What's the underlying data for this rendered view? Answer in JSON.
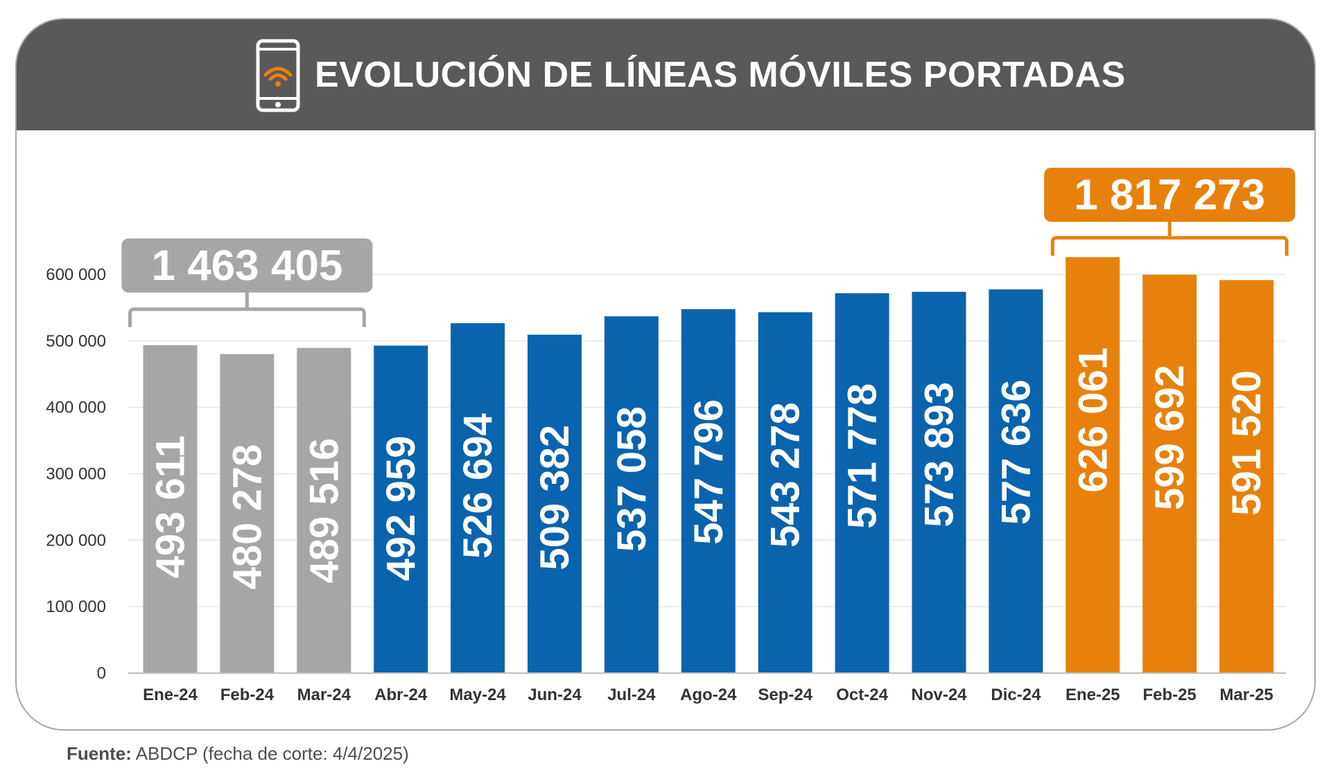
{
  "header": {
    "title": "EVOLUCIÓN DE LÍNEAS MÓVILES PORTADAS",
    "icon": "smartphone-wifi-icon"
  },
  "footer": {
    "label": "Fuente:",
    "text": "ABDCP (fecha de corte: 4/4/2025)"
  },
  "colors": {
    "header_bg": "#595959",
    "gray": "#a6a6a6",
    "blue": "#0a63ad",
    "orange": "#e8810c",
    "axis_text": "#333333"
  },
  "chart_data": {
    "type": "bar",
    "categories": [
      "Ene-24",
      "Feb-24",
      "Mar-24",
      "Abr-24",
      "May-24",
      "Jun-24",
      "Jul-24",
      "Ago-24",
      "Sep-24",
      "Oct-24",
      "Nov-24",
      "Dic-24",
      "Ene-25",
      "Feb-25",
      "Mar-25"
    ],
    "values": [
      493611,
      480278,
      489516,
      492959,
      526694,
      509382,
      537058,
      547796,
      543278,
      571778,
      573893,
      577636,
      626061,
      599692,
      591520
    ],
    "value_labels": [
      "493 611",
      "480 278",
      "489 516",
      "492 959",
      "526 694",
      "509 382",
      "537 058",
      "547 796",
      "543 278",
      "571 778",
      "573 893",
      "577 636",
      "626 061",
      "599 692",
      "591 520"
    ],
    "bar_colors": [
      "gray",
      "gray",
      "gray",
      "blue",
      "blue",
      "blue",
      "blue",
      "blue",
      "blue",
      "blue",
      "blue",
      "blue",
      "orange",
      "orange",
      "orange"
    ],
    "ylim": [
      0,
      600000
    ],
    "y_ticks": [
      0,
      100000,
      200000,
      300000,
      400000,
      500000,
      600000
    ],
    "y_tick_labels": [
      "0",
      "100 000",
      "200 000",
      "300 000",
      "400 000",
      "500 000",
      "600 000"
    ],
    "grid": true,
    "title": "EVOLUCIÓN DE LÍNEAS MÓVILES PORTADAS",
    "xlabel": "",
    "ylabel": "",
    "annotations": [
      {
        "text": "1 463 405",
        "from_index": 0,
        "to_index": 2,
        "color": "gray"
      },
      {
        "text": "1 817 273",
        "from_index": 12,
        "to_index": 14,
        "color": "orange"
      }
    ]
  }
}
